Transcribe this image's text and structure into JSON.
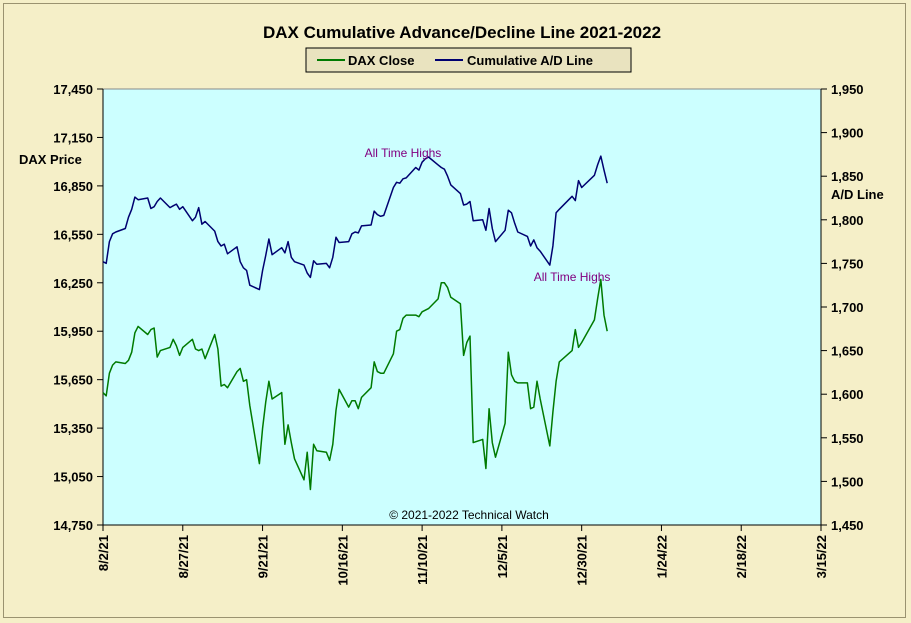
{
  "chart_data": {
    "type": "line",
    "title": "DAX Cumulative  Advance/Decline  Line  2021-2022",
    "copyright": "© 2021-2022  Technical  Watch",
    "legend": {
      "placement": "top-center",
      "entries": [
        "DAX Close",
        "Cumulative A/D Line"
      ]
    },
    "left_axis": {
      "label": "DAX Price",
      "range": [
        14750,
        17450
      ],
      "ticks": [
        14750,
        15050,
        15350,
        15650,
        15950,
        16250,
        16550,
        16850,
        17150,
        17450
      ],
      "tick_labels": [
        "14,750",
        "15,050",
        "15,350",
        "15,650",
        "15,950",
        "16,250",
        "16,550",
        "16,850",
        "17,150",
        "17,450"
      ]
    },
    "right_axis": {
      "label": "A/D Line",
      "range": [
        1450,
        1950
      ],
      "ticks": [
        1450,
        1500,
        1550,
        1600,
        1650,
        1700,
        1750,
        1800,
        1850,
        1900,
        1950
      ],
      "tick_labels": [
        "1,450",
        "1,500",
        "1,550",
        "1,600",
        "1,650",
        "1,700",
        "1,750",
        "1,800",
        "1,850",
        "1,900",
        "1,950"
      ]
    },
    "x_axis": {
      "range": [
        "2021-08-02",
        "2022-03-15"
      ],
      "tick_dates": [
        "2021-08-02",
        "2021-08-27",
        "2021-09-21",
        "2021-10-16",
        "2021-11-10",
        "2021-12-05",
        "2021-12-30",
        "2022-01-24",
        "2022-02-18",
        "2022-03-15"
      ],
      "tick_labels": [
        "8/2/21",
        "8/27/21",
        "9/21/21",
        "10/16/21",
        "11/10/21",
        "12/5/21",
        "12/30/21",
        "1/24/22",
        "2/18/22",
        "3/15/22"
      ]
    },
    "annotations": [
      {
        "text": "All Time  Highs",
        "series": "Cumulative A/D Line",
        "date": "2021-11-04",
        "value": 1872
      },
      {
        "text": "All Time  Highs",
        "series": "DAX Close",
        "date": "2021-12-27",
        "value": 16262
      }
    ],
    "grid": false,
    "colors": {
      "plot_bg": "#ccffff",
      "page_bg": "#f5efc8",
      "dax": "#007a00",
      "ad": "#000070",
      "annotation": "#800080"
    },
    "series": [
      {
        "name": "DAX Close",
        "axis": "left",
        "color": "#007a00",
        "points": [
          [
            "2021-08-02",
            15570
          ],
          [
            "2021-08-03",
            15550
          ],
          [
            "2021-08-04",
            15690
          ],
          [
            "2021-08-05",
            15740
          ],
          [
            "2021-08-06",
            15760
          ],
          [
            "2021-08-09",
            15750
          ],
          [
            "2021-08-10",
            15770
          ],
          [
            "2021-08-11",
            15820
          ],
          [
            "2021-08-12",
            15940
          ],
          [
            "2021-08-13",
            15980
          ],
          [
            "2021-08-16",
            15930
          ],
          [
            "2021-08-17",
            15960
          ],
          [
            "2021-08-18",
            15970
          ],
          [
            "2021-08-19",
            15790
          ],
          [
            "2021-08-20",
            15830
          ],
          [
            "2021-08-23",
            15850
          ],
          [
            "2021-08-24",
            15900
          ],
          [
            "2021-08-25",
            15860
          ],
          [
            "2021-08-26",
            15800
          ],
          [
            "2021-08-27",
            15850
          ],
          [
            "2021-08-30",
            15900
          ],
          [
            "2021-08-31",
            15840
          ],
          [
            "2021-09-01",
            15830
          ],
          [
            "2021-09-02",
            15840
          ],
          [
            "2021-09-03",
            15780
          ],
          [
            "2021-09-06",
            15930
          ],
          [
            "2021-09-07",
            15840
          ],
          [
            "2021-09-08",
            15610
          ],
          [
            "2021-09-09",
            15620
          ],
          [
            "2021-09-10",
            15600
          ],
          [
            "2021-09-13",
            15700
          ],
          [
            "2021-09-14",
            15720
          ],
          [
            "2021-09-15",
            15640
          ],
          [
            "2021-09-16",
            15650
          ],
          [
            "2021-09-17",
            15490
          ],
          [
            "2021-09-20",
            15130
          ],
          [
            "2021-09-21",
            15350
          ],
          [
            "2021-09-22",
            15510
          ],
          [
            "2021-09-23",
            15640
          ],
          [
            "2021-09-24",
            15530
          ],
          [
            "2021-09-27",
            15570
          ],
          [
            "2021-09-28",
            15250
          ],
          [
            "2021-09-29",
            15370
          ],
          [
            "2021-09-30",
            15260
          ],
          [
            "2021-10-01",
            15160
          ],
          [
            "2021-10-04",
            15030
          ],
          [
            "2021-10-05",
            15200
          ],
          [
            "2021-10-06",
            14970
          ],
          [
            "2021-10-07",
            15250
          ],
          [
            "2021-10-08",
            15210
          ],
          [
            "2021-10-11",
            15200
          ],
          [
            "2021-10-12",
            15150
          ],
          [
            "2021-10-13",
            15250
          ],
          [
            "2021-10-14",
            15460
          ],
          [
            "2021-10-15",
            15590
          ],
          [
            "2021-10-18",
            15480
          ],
          [
            "2021-10-19",
            15520
          ],
          [
            "2021-10-20",
            15520
          ],
          [
            "2021-10-21",
            15470
          ],
          [
            "2021-10-22",
            15540
          ],
          [
            "2021-10-25",
            15600
          ],
          [
            "2021-10-26",
            15760
          ],
          [
            "2021-10-27",
            15700
          ],
          [
            "2021-10-28",
            15690
          ],
          [
            "2021-10-29",
            15690
          ],
          [
            "2021-11-01",
            15810
          ],
          [
            "2021-11-02",
            15950
          ],
          [
            "2021-11-03",
            15960
          ],
          [
            "2021-11-04",
            16030
          ],
          [
            "2021-11-05",
            16050
          ],
          [
            "2021-11-08",
            16050
          ],
          [
            "2021-11-09",
            16040
          ],
          [
            "2021-11-10",
            16070
          ],
          [
            "2021-11-11",
            16080
          ],
          [
            "2021-11-12",
            16090
          ],
          [
            "2021-11-15",
            16150
          ],
          [
            "2021-11-16",
            16250
          ],
          [
            "2021-11-17",
            16250
          ],
          [
            "2021-11-18",
            16220
          ],
          [
            "2021-11-19",
            16160
          ],
          [
            "2021-11-22",
            16120
          ],
          [
            "2021-11-23",
            15800
          ],
          [
            "2021-11-24",
            15880
          ],
          [
            "2021-11-25",
            15920
          ],
          [
            "2021-11-26",
            15260
          ],
          [
            "2021-11-29",
            15280
          ],
          [
            "2021-11-30",
            15100
          ],
          [
            "2021-12-01",
            15470
          ],
          [
            "2021-12-02",
            15260
          ],
          [
            "2021-12-03",
            15170
          ],
          [
            "2021-12-06",
            15380
          ],
          [
            "2021-12-07",
            15820
          ],
          [
            "2021-12-08",
            15680
          ],
          [
            "2021-12-09",
            15640
          ],
          [
            "2021-12-10",
            15630
          ],
          [
            "2021-12-13",
            15630
          ],
          [
            "2021-12-14",
            15470
          ],
          [
            "2021-12-15",
            15480
          ],
          [
            "2021-12-16",
            15640
          ],
          [
            "2021-12-17",
            15530
          ],
          [
            "2021-12-20",
            15240
          ],
          [
            "2021-12-21",
            15450
          ],
          [
            "2021-12-22",
            15640
          ],
          [
            "2021-12-23",
            15760
          ],
          [
            "2021-12-27",
            15830
          ],
          [
            "2021-12-28",
            15960
          ],
          [
            "2021-12-29",
            15850
          ],
          [
            "2021-12-30",
            15880
          ],
          [
            "2022-01-03",
            16020
          ],
          [
            "2022-01-04",
            16150
          ],
          [
            "2022-01-05",
            16270
          ],
          [
            "2022-01-06",
            16050
          ],
          [
            "2022-01-07",
            15950
          ]
        ]
      },
      {
        "name": "Cumulative A/D Line",
        "axis": "right",
        "color": "#000070",
        "points": [
          [
            "2021-08-02",
            1752
          ],
          [
            "2021-08-03",
            1750
          ],
          [
            "2021-08-04",
            1775
          ],
          [
            "2021-08-05",
            1784
          ],
          [
            "2021-08-06",
            1786
          ],
          [
            "2021-08-09",
            1790
          ],
          [
            "2021-08-10",
            1803
          ],
          [
            "2021-08-11",
            1812
          ],
          [
            "2021-08-12",
            1826
          ],
          [
            "2021-08-13",
            1823
          ],
          [
            "2021-08-16",
            1825
          ],
          [
            "2021-08-17",
            1813
          ],
          [
            "2021-08-18",
            1815
          ],
          [
            "2021-08-19",
            1821
          ],
          [
            "2021-08-20",
            1825
          ],
          [
            "2021-08-23",
            1814
          ],
          [
            "2021-08-24",
            1816
          ],
          [
            "2021-08-25",
            1818
          ],
          [
            "2021-08-26",
            1812
          ],
          [
            "2021-08-27",
            1815
          ],
          [
            "2021-08-30",
            1799
          ],
          [
            "2021-08-31",
            1803
          ],
          [
            "2021-09-01",
            1814
          ],
          [
            "2021-09-02",
            1795
          ],
          [
            "2021-09-03",
            1798
          ],
          [
            "2021-09-06",
            1787
          ],
          [
            "2021-09-07",
            1775
          ],
          [
            "2021-09-08",
            1770
          ],
          [
            "2021-09-09",
            1772
          ],
          [
            "2021-09-10",
            1761
          ],
          [
            "2021-09-13",
            1769
          ],
          [
            "2021-09-14",
            1752
          ],
          [
            "2021-09-15",
            1745
          ],
          [
            "2021-09-16",
            1742
          ],
          [
            "2021-09-17",
            1725
          ],
          [
            "2021-09-20",
            1720
          ],
          [
            "2021-09-21",
            1742
          ],
          [
            "2021-09-22",
            1759
          ],
          [
            "2021-09-23",
            1778
          ],
          [
            "2021-09-24",
            1760
          ],
          [
            "2021-09-27",
            1768
          ],
          [
            "2021-09-28",
            1762
          ],
          [
            "2021-09-29",
            1775
          ],
          [
            "2021-09-30",
            1757
          ],
          [
            "2021-10-01",
            1752
          ],
          [
            "2021-10-04",
            1748
          ],
          [
            "2021-10-05",
            1739
          ],
          [
            "2021-10-06",
            1734
          ],
          [
            "2021-10-07",
            1753
          ],
          [
            "2021-10-08",
            1749
          ],
          [
            "2021-10-11",
            1750
          ],
          [
            "2021-10-12",
            1745
          ],
          [
            "2021-10-13",
            1757
          ],
          [
            "2021-10-14",
            1780
          ],
          [
            "2021-10-15",
            1774
          ],
          [
            "2021-10-18",
            1775
          ],
          [
            "2021-10-19",
            1784
          ],
          [
            "2021-10-20",
            1786
          ],
          [
            "2021-10-21",
            1785
          ],
          [
            "2021-10-22",
            1793
          ],
          [
            "2021-10-25",
            1794
          ],
          [
            "2021-10-26",
            1810
          ],
          [
            "2021-10-27",
            1806
          ],
          [
            "2021-10-28",
            1804
          ],
          [
            "2021-10-29",
            1805
          ],
          [
            "2021-11-01",
            1837
          ],
          [
            "2021-11-02",
            1843
          ],
          [
            "2021-11-03",
            1842
          ],
          [
            "2021-11-04",
            1847
          ],
          [
            "2021-11-05",
            1848
          ],
          [
            "2021-11-08",
            1860
          ],
          [
            "2021-11-09",
            1857
          ],
          [
            "2021-11-10",
            1866
          ],
          [
            "2021-11-11",
            1870
          ],
          [
            "2021-11-12",
            1872
          ],
          [
            "2021-11-15",
            1863
          ],
          [
            "2021-11-16",
            1860
          ],
          [
            "2021-11-17",
            1858
          ],
          [
            "2021-11-18",
            1850
          ],
          [
            "2021-11-19",
            1840
          ],
          [
            "2021-11-22",
            1830
          ],
          [
            "2021-11-23",
            1817
          ],
          [
            "2021-11-24",
            1818
          ],
          [
            "2021-11-25",
            1821
          ],
          [
            "2021-11-26",
            1799
          ],
          [
            "2021-11-29",
            1800
          ],
          [
            "2021-11-30",
            1788
          ],
          [
            "2021-12-01",
            1813
          ],
          [
            "2021-12-02",
            1790
          ],
          [
            "2021-12-03",
            1775
          ],
          [
            "2021-12-06",
            1788
          ],
          [
            "2021-12-07",
            1811
          ],
          [
            "2021-12-08",
            1808
          ],
          [
            "2021-12-09",
            1796
          ],
          [
            "2021-12-10",
            1786
          ],
          [
            "2021-12-13",
            1781
          ],
          [
            "2021-12-14",
            1770
          ],
          [
            "2021-12-15",
            1777
          ],
          [
            "2021-12-16",
            1768
          ],
          [
            "2021-12-17",
            1764
          ],
          [
            "2021-12-20",
            1748
          ],
          [
            "2021-12-21",
            1770
          ],
          [
            "2021-12-22",
            1808
          ],
          [
            "2021-12-23",
            1812
          ],
          [
            "2021-12-27",
            1827
          ],
          [
            "2021-12-28",
            1822
          ],
          [
            "2021-12-29",
            1845
          ],
          [
            "2021-12-30",
            1837
          ],
          [
            "2022-01-03",
            1851
          ],
          [
            "2022-01-04",
            1863
          ],
          [
            "2022-01-05",
            1873
          ],
          [
            "2022-01-06",
            1857
          ],
          [
            "2022-01-07",
            1842
          ]
        ]
      }
    ]
  }
}
